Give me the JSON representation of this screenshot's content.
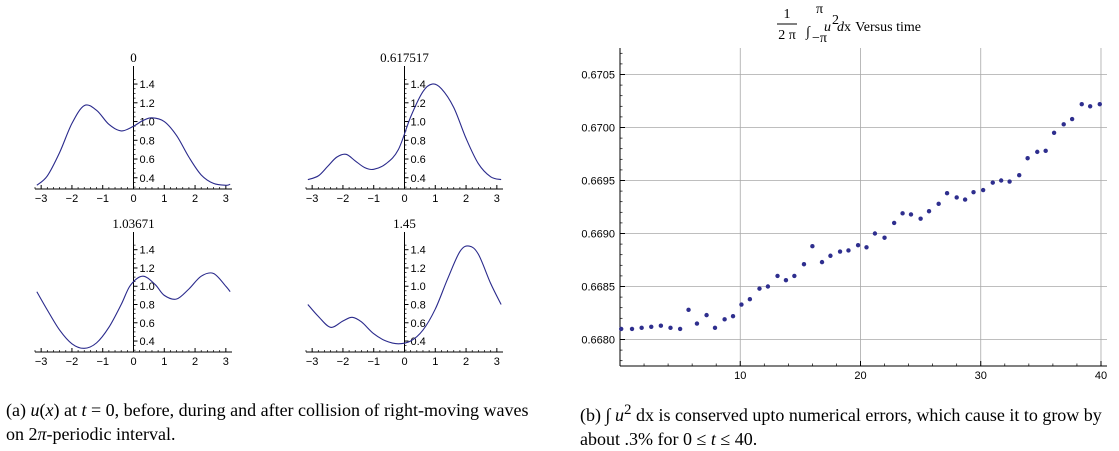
{
  "chart_data": [
    {
      "type": "line",
      "title": "0",
      "x_ticks": [
        "−3",
        "−2",
        "−1",
        "0",
        "1",
        "2",
        "3"
      ],
      "y_ticks": [
        "0.4",
        "0.6",
        "0.8",
        "1.0",
        "1.2",
        "1.4"
      ],
      "xlim": [
        -3.2,
        3.2
      ],
      "ylim": [
        0.28,
        1.55
      ],
      "series": [
        {
          "x": [
            -3.14,
            -2.8,
            -2.4,
            -2.0,
            -1.6,
            -1.2,
            -0.8,
            -0.4,
            0.0,
            0.3,
            0.6,
            1.0,
            1.4,
            1.8,
            2.2,
            2.6,
            3.0,
            3.14
          ],
          "y": [
            0.32,
            0.42,
            0.67,
            0.98,
            1.17,
            1.12,
            0.97,
            0.9,
            0.95,
            1.01,
            1.04,
            1.0,
            0.85,
            0.62,
            0.43,
            0.34,
            0.32,
            0.33
          ]
        }
      ]
    },
    {
      "type": "line",
      "title": "0.617517",
      "x_ticks": [
        "−3",
        "−2",
        "−1",
        "0",
        "1",
        "2",
        "3"
      ],
      "y_ticks": [
        "0.4",
        "0.6",
        "0.8",
        "1.0",
        "1.2",
        "1.4"
      ],
      "xlim": [
        -3.2,
        3.2
      ],
      "ylim": [
        0.28,
        1.55
      ],
      "series": [
        {
          "x": [
            -3.14,
            -2.8,
            -2.5,
            -2.2,
            -1.9,
            -1.6,
            -1.3,
            -1.0,
            -0.6,
            -0.2,
            0.2,
            0.6,
            0.9,
            1.2,
            1.6,
            2.0,
            2.4,
            2.8,
            3.14
          ],
          "y": [
            0.38,
            0.42,
            0.52,
            0.62,
            0.65,
            0.58,
            0.51,
            0.49,
            0.55,
            0.7,
            1.05,
            1.32,
            1.4,
            1.35,
            1.15,
            0.82,
            0.55,
            0.41,
            0.38
          ]
        }
      ]
    },
    {
      "type": "line",
      "title": "1.03671",
      "x_ticks": [
        "−3",
        "−2",
        "−1",
        "0",
        "1",
        "2",
        "3"
      ],
      "y_ticks": [
        "0.4",
        "0.6",
        "0.8",
        "1.0",
        "1.2",
        "1.4"
      ],
      "xlim": [
        -3.2,
        3.2
      ],
      "ylim": [
        0.28,
        1.55
      ],
      "series": [
        {
          "x": [
            -3.14,
            -2.8,
            -2.4,
            -2.0,
            -1.6,
            -1.2,
            -0.8,
            -0.4,
            -0.1,
            0.3,
            0.7,
            1.0,
            1.4,
            1.8,
            2.2,
            2.6,
            3.0,
            3.14
          ],
          "y": [
            0.94,
            0.74,
            0.52,
            0.37,
            0.32,
            0.38,
            0.55,
            0.8,
            1.01,
            1.11,
            1.02,
            0.9,
            0.86,
            0.97,
            1.11,
            1.14,
            1.0,
            0.94
          ]
        }
      ]
    },
    {
      "type": "line",
      "title": "1.45",
      "x_ticks": [
        "−3",
        "−2",
        "−1",
        "0",
        "1",
        "2",
        "3"
      ],
      "y_ticks": [
        "0.4",
        "0.6",
        "0.8",
        "1.0",
        "1.2",
        "1.4"
      ],
      "xlim": [
        -3.2,
        3.2
      ],
      "ylim": [
        0.28,
        1.55
      ],
      "series": [
        {
          "x": [
            -3.14,
            -2.8,
            -2.4,
            -2.0,
            -1.7,
            -1.4,
            -1.0,
            -0.6,
            -0.2,
            0.2,
            0.6,
            1.0,
            1.4,
            1.8,
            2.1,
            2.4,
            2.8,
            3.14
          ],
          "y": [
            0.8,
            0.67,
            0.55,
            0.62,
            0.66,
            0.61,
            0.48,
            0.4,
            0.37,
            0.4,
            0.52,
            0.75,
            1.08,
            1.38,
            1.44,
            1.35,
            1.03,
            0.8
          ]
        }
      ]
    },
    {
      "type": "scatter",
      "title_fraction_num": "1",
      "title_fraction_den": "2 π",
      "title_int_upper": "π",
      "title_int_lower": "−π",
      "title_integrand": "u",
      "title_exponent": "2",
      "title_dx": "dx",
      "title_suffix": " Versus time",
      "x_ticks": [
        "10",
        "20",
        "30",
        "40"
      ],
      "y_ticks": [
        "0.6680",
        "0.6685",
        "0.6690",
        "0.6695",
        "0.6700",
        "0.6705"
      ],
      "xlim": [
        0,
        40.5
      ],
      "ylim": [
        0.66775,
        0.67075
      ],
      "grid": true,
      "series": [
        {
          "x": [
            0.1,
            1.0,
            1.8,
            2.6,
            3.4,
            4.2,
            5.0,
            5.7,
            6.4,
            7.2,
            7.9,
            8.7,
            9.4,
            10.1,
            10.8,
            11.6,
            12.3,
            13.1,
            13.8,
            14.5,
            15.3,
            16.0,
            16.8,
            17.5,
            18.3,
            19.0,
            19.8,
            20.5,
            21.2,
            22.0,
            22.8,
            23.5,
            24.2,
            25.0,
            25.7,
            26.5,
            27.2,
            28.0,
            28.7,
            29.4,
            30.2,
            31.0,
            31.7,
            32.4,
            33.2,
            33.9,
            34.7,
            35.4,
            36.1,
            36.9,
            37.6,
            38.4,
            39.1,
            39.9
          ],
          "y": [
            0.6681,
            0.6681,
            0.66811,
            0.66812,
            0.66813,
            0.66811,
            0.6681,
            0.66828,
            0.66815,
            0.66823,
            0.66811,
            0.66819,
            0.66822,
            0.66833,
            0.66838,
            0.66848,
            0.6685,
            0.6686,
            0.66856,
            0.6686,
            0.66871,
            0.66888,
            0.66873,
            0.66879,
            0.66883,
            0.66884,
            0.66889,
            0.66887,
            0.669,
            0.66896,
            0.6691,
            0.66919,
            0.66918,
            0.66914,
            0.66921,
            0.66928,
            0.66938,
            0.66934,
            0.66932,
            0.66939,
            0.66941,
            0.66948,
            0.6695,
            0.66949,
            0.66955,
            0.66971,
            0.66977,
            0.66978,
            0.66995,
            0.67003,
            0.67008,
            0.67022,
            0.6702,
            0.67022
          ]
        }
      ]
    }
  ],
  "colors": {
    "curve": "#2a2a8c",
    "points": "#2e2e8e",
    "axis": "#000000",
    "grid": "#a8a8a8"
  },
  "captions": {
    "a_pre": "(a) ",
    "a_var": "u",
    "a_mid1": "(",
    "a_var_x": "x",
    "a_mid2": ") at ",
    "a_var_t": "t",
    "a_rest1": " = 0, before, during and after collision of right-moving waves on 2",
    "a_pi": "π",
    "a_rest2": "-periodic interval.",
    "b_pre": "(b) ",
    "b_int": "∫",
    "b_var": "u",
    "b_exp": "2",
    "b_dx": " dx",
    "b_rest1": " is conserved upto numerical errors, which cause it to grow by about .3% for 0 ≤ ",
    "b_var_t": "t",
    "b_rest2": " ≤ 40."
  }
}
